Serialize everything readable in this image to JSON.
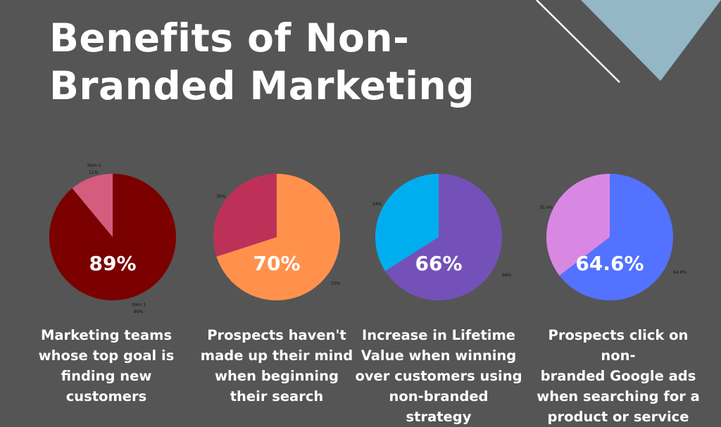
{
  "title_line1": "Benefits of Non-",
  "title_line2": "Branded Marketing",
  "colors": {
    "background": "#555555",
    "triangle": "#93b7c5"
  },
  "chart_data": [
    {
      "type": "pie",
      "center_label": "89%",
      "caption": [
        "Marketing teams",
        "whose top goal is",
        "finding new",
        "customers"
      ],
      "slices": [
        {
          "name": "Item 1",
          "label": "89%",
          "value": 89,
          "color": "#7b0000"
        },
        {
          "name": "Item 2",
          "label": "11%",
          "value": 11,
          "color": "#d45c7c"
        }
      ]
    },
    {
      "type": "pie",
      "center_label": "70%",
      "caption": [
        "Prospects haven't",
        "made up their mind",
        "when beginning",
        "their search"
      ],
      "slices": [
        {
          "name": "",
          "label": "70%",
          "value": 70,
          "color": "#ff914d"
        },
        {
          "name": "",
          "label": "30%",
          "value": 30,
          "color": "#bd3159"
        }
      ]
    },
    {
      "type": "pie",
      "center_label": "66%",
      "caption": [
        "Increase in Lifetime",
        "Value when winning",
        "over customers using",
        "non-branded strategy"
      ],
      "slices": [
        {
          "name": "",
          "label": "66%",
          "value": 66,
          "color": "#7451b8"
        },
        {
          "name": "",
          "label": "34%",
          "value": 34,
          "color": "#00aef0"
        }
      ]
    },
    {
      "type": "pie",
      "center_label": "64.6%",
      "caption": [
        "Prospects click on non-",
        "branded Google ads",
        "when searching for a",
        "product or service"
      ],
      "slices": [
        {
          "name": "",
          "label": "64.6%",
          "value": 64.6,
          "color": "#5272ff"
        },
        {
          "name": "",
          "label": "35.4%",
          "value": 35.4,
          "color": "#d888e3"
        }
      ]
    }
  ]
}
